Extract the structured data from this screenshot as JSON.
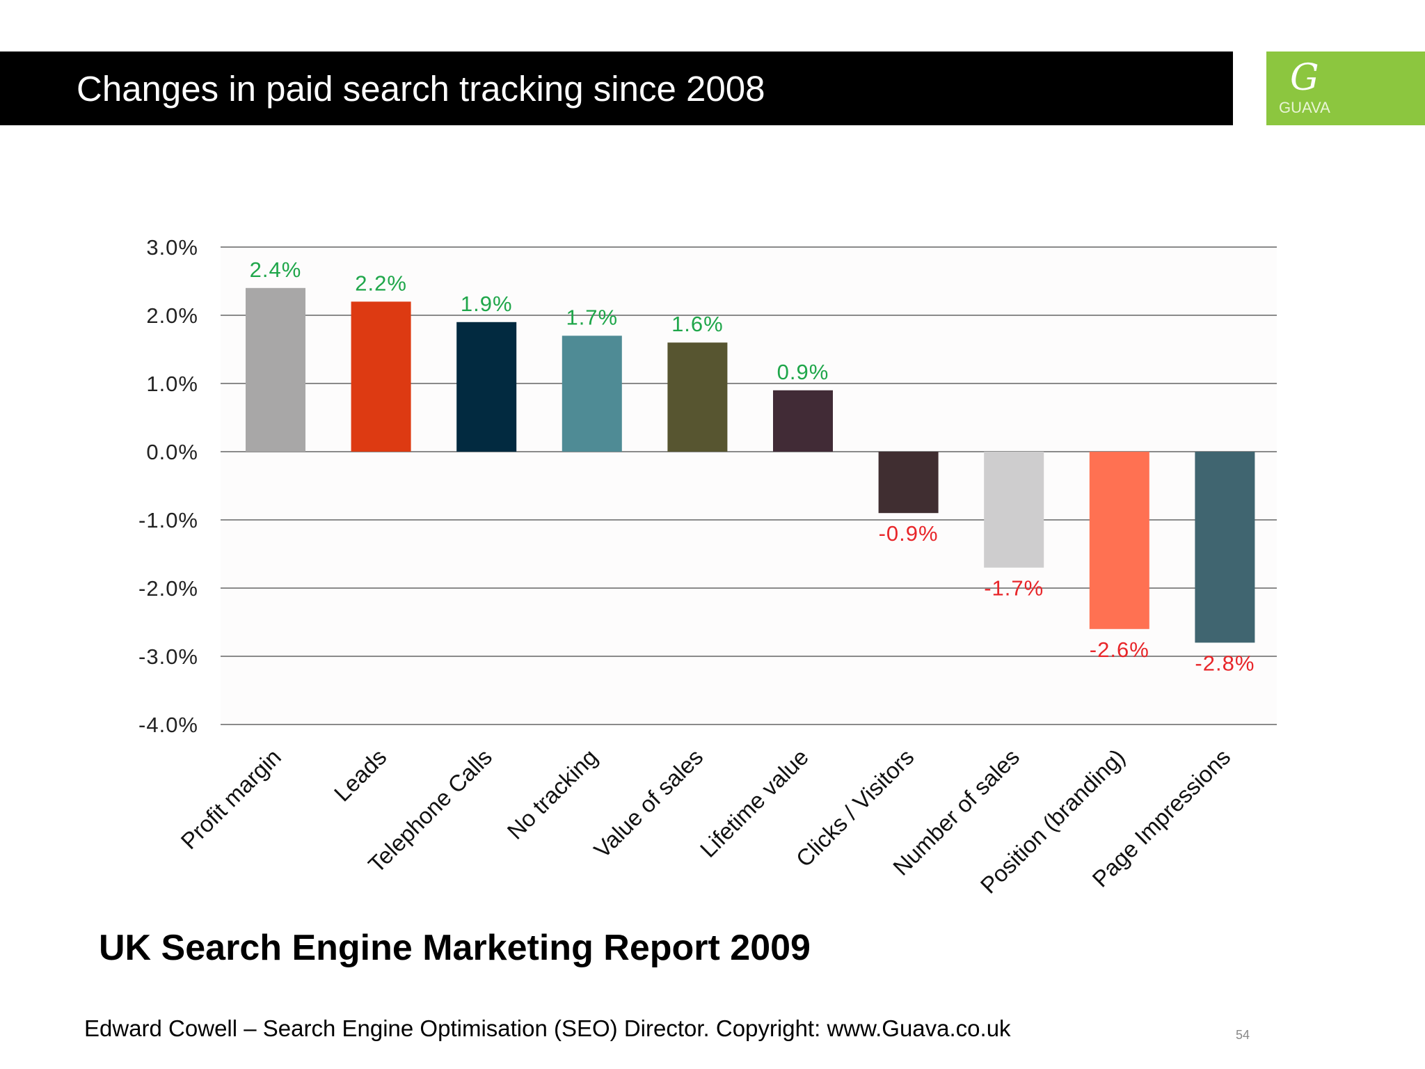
{
  "header": {
    "title": "Changes in paid search tracking since 2008"
  },
  "logo": {
    "text": "GUAVA",
    "color": "#8cc63f"
  },
  "chart_data": {
    "type": "bar",
    "categories": [
      "Profit margin",
      "Leads",
      "Telephone Calls",
      "No tracking",
      "Value of sales",
      "Lifetime value",
      "Clicks / Visitors",
      "Number of sales",
      "Position (branding)",
      "Page Impressions"
    ],
    "values": [
      2.4,
      2.2,
      1.9,
      1.7,
      1.6,
      0.9,
      -0.9,
      -1.7,
      -2.6,
      -2.8
    ],
    "data_labels": [
      "2.4%",
      "2.2%",
      "1.9%",
      "1.7%",
      "1.6%",
      "0.9%",
      "-0.9%",
      "-1.7%",
      "-2.6%",
      "-2.8%"
    ],
    "colors": [
      "#a8a7a7",
      "#dd3a12",
      "#022a40",
      "#4f8b95",
      "#575530",
      "#412b36",
      "#402e31",
      "#cecdce",
      "#ff7152",
      "#406570"
    ],
    "ylim": [
      -4.0,
      3.0
    ],
    "y_ticks": [
      3.0,
      2.0,
      1.0,
      0.0,
      -1.0,
      -2.0,
      -3.0,
      -4.0
    ],
    "y_tick_labels": [
      "3.0%",
      "2.0%",
      "1.0%",
      "0.0%",
      "-1.0%",
      "-2.0%",
      "-3.0%",
      "-4.0%"
    ],
    "grid": true,
    "label_colors": {
      "positive": "#1fa64a",
      "negative": "#e8262a"
    },
    "title": "",
    "xlabel": "",
    "ylabel": ""
  },
  "subtitle": "UK Search Engine Marketing Report 2009",
  "footer": "Edward Cowell – Search Engine Optimisation (SEO) Director. Copyright: www.Guava.co.uk",
  "page_number": "54"
}
